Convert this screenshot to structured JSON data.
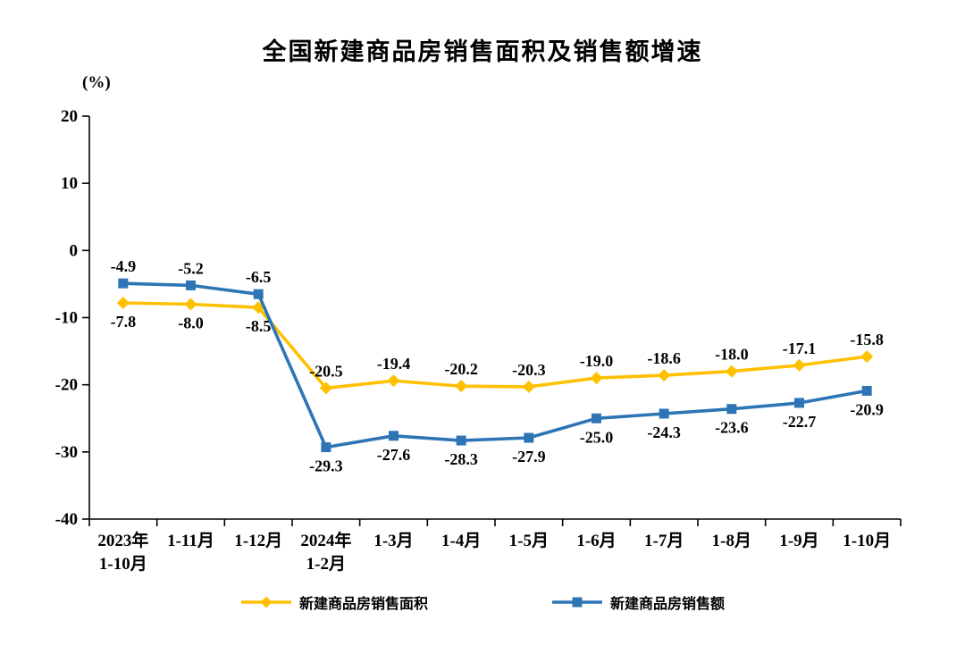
{
  "page": {
    "background": "#ffffff"
  },
  "chart_data": {
    "type": "line",
    "title": "全国新建商品房销售面积及销售额增速",
    "xlabel": "",
    "ylabel": "(%)",
    "ylim": [
      -40,
      20
    ],
    "ytick_step": 10,
    "ytick_labels": [
      "20",
      "10",
      "0",
      "-10",
      "-20",
      "-30",
      "-40"
    ],
    "grid": false,
    "legend_position": "bottom",
    "categories": [
      "2023年\n1-10月",
      "1-11月",
      "1-12月",
      "2024年\n1-2月",
      "1-3月",
      "1-4月",
      "1-5月",
      "1-6月",
      "1-7月",
      "1-8月",
      "1-9月",
      "1-10月"
    ],
    "series": [
      {
        "name": "新建商品房销售面积",
        "color": "#FFC000",
        "marker": "diamond",
        "values": [
          -7.8,
          -8.0,
          -8.5,
          -20.5,
          -19.4,
          -20.2,
          -20.3,
          -19.0,
          -18.6,
          -18.0,
          -17.1,
          -15.8
        ],
        "label_positions": [
          "below",
          "below",
          "below",
          "above",
          "above",
          "above",
          "above",
          "above",
          "above",
          "above",
          "above",
          "above"
        ]
      },
      {
        "name": "新建商品房销售额",
        "color": "#2E75B6",
        "marker": "square",
        "values": [
          -4.9,
          -5.2,
          -6.5,
          -29.3,
          -27.6,
          -28.3,
          -27.9,
          -25.0,
          -24.3,
          -23.6,
          -22.7,
          -20.9
        ],
        "label_positions": [
          "above",
          "above",
          "above",
          "below",
          "below",
          "below",
          "below",
          "below",
          "below",
          "below",
          "below",
          "below"
        ]
      }
    ]
  }
}
